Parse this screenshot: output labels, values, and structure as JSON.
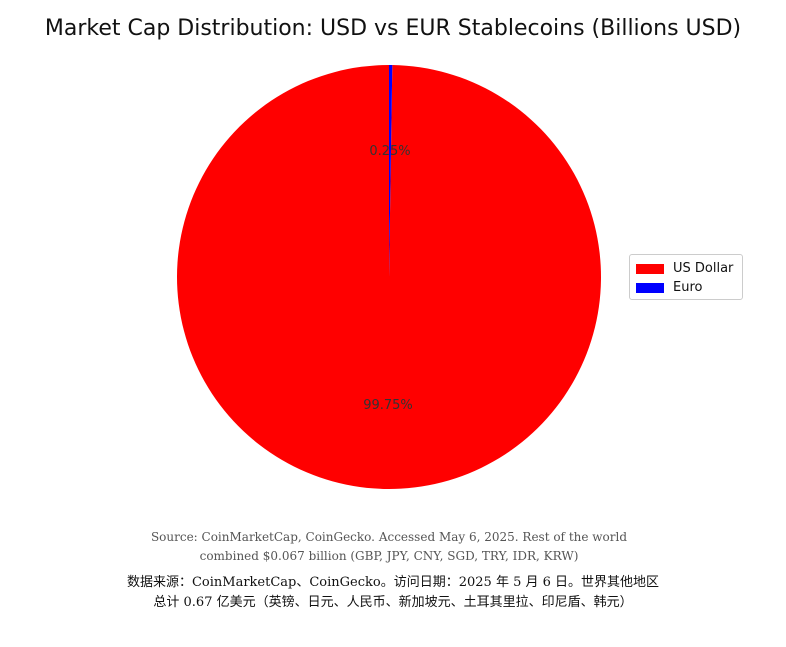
{
  "chart_data": {
    "type": "pie",
    "title": "Market Cap Distribution: USD vs EUR Stablecoins (Billions USD)",
    "categories": [
      "US Dollar",
      "Euro"
    ],
    "values": [
      99.75,
      0.25
    ],
    "value_labels": [
      "99.75%",
      "0.25%"
    ],
    "colors": [
      "#ff0000",
      "#0000ff"
    ],
    "start_angle_deg": 90,
    "direction": "counterclockwise",
    "legend": {
      "placement": "right",
      "entries": [
        "US Dollar",
        "Euro"
      ]
    }
  },
  "footnotes": {
    "source_en": "Source: CoinMarketCap, CoinGecko. Accessed May 6, 2025. Rest of the world combined $0.067 billion (GBP, JPY, CNY, SGD, TRY, IDR, KRW)",
    "source_zh": "数据来源：CoinMarketCap、CoinGecko。访问日期：2025 年 5 月 6 日。世界其他地区总计 0.67 亿美元（英镑、日元、人民币、新加坡元、土耳其里拉、印尼盾、韩元）"
  }
}
